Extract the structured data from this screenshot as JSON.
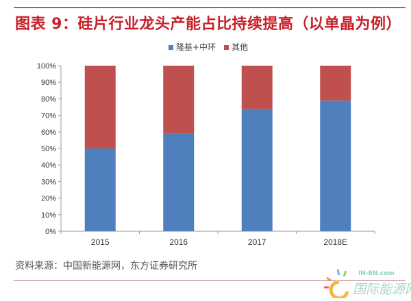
{
  "chart_data": {
    "type": "bar",
    "stacked": true,
    "title": "图表 9：硅片行业龙头产能占比持续提高（以单晶为例）",
    "categories": [
      "2015",
      "2016",
      "2017",
      "2018E"
    ],
    "series": [
      {
        "name": "隆基+中环",
        "color": "#4f7fbd",
        "values": [
          50,
          59,
          74,
          79
        ]
      },
      {
        "name": "其他",
        "color": "#c0504d",
        "values": [
          50,
          41,
          26,
          21
        ]
      }
    ],
    "ylim": [
      0,
      100
    ],
    "yticks": [
      "0%",
      "10%",
      "20%",
      "30%",
      "40%",
      "50%",
      "60%",
      "70%",
      "80%",
      "90%",
      "100%"
    ],
    "legend_position": "top-center",
    "grid": false,
    "xlabel": "",
    "ylabel": ""
  },
  "source": "资料来源：中国新能源网，东方证券研究所",
  "watermark": {
    "en": "IN-EN.com",
    "cn": "国际能源网"
  }
}
